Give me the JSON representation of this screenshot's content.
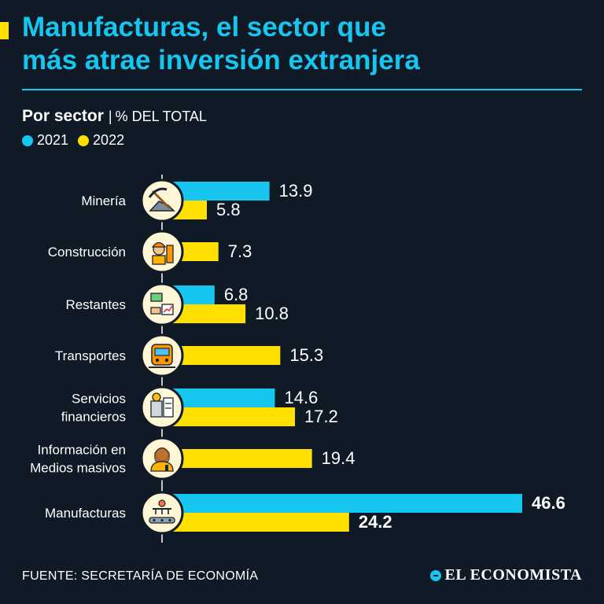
{
  "title": {
    "line1": "Manufacturas, el sector que",
    "line2": "más atrae inversión extranjera"
  },
  "subtitle": {
    "main": "Por sector",
    "separator": "|",
    "unit": "% DEL TOTAL"
  },
  "colors": {
    "accent": "#16c6ef",
    "series_2021": "#16c6ef",
    "series_2022": "#ffe000",
    "background": "#0f1a26"
  },
  "chart_data": {
    "type": "bar",
    "orientation": "horizontal",
    "title": "Manufacturas, el sector que más atrae inversión extranjera",
    "subtitle": "Por sector | % DEL TOTAL",
    "xlim": [
      0,
      50
    ],
    "legend": "top-left",
    "grid": false,
    "categories": [
      {
        "lines": [
          "Minería"
        ],
        "icon": "mining-icon"
      },
      {
        "lines": [
          "Construcción"
        ],
        "icon": "construction-worker-icon"
      },
      {
        "lines": [
          "Restantes"
        ],
        "icon": "money-growth-icon"
      },
      {
        "lines": [
          "Transportes"
        ],
        "icon": "train-icon"
      },
      {
        "lines": [
          "Servicios",
          "financieros"
        ],
        "icon": "finance-calculator-icon"
      },
      {
        "lines": [
          "Información en",
          "Medios masivos"
        ],
        "icon": "news-anchor-icon"
      },
      {
        "lines": [
          "Manufacturas"
        ],
        "icon": "factory-robot-icon"
      }
    ],
    "series": [
      {
        "name": "2021",
        "color": "#16c6ef",
        "values": [
          13.9,
          null,
          6.8,
          null,
          14.6,
          null,
          46.6
        ],
        "labels": [
          "13.9",
          "",
          "6.8",
          "",
          "14.6",
          "",
          "46.6"
        ]
      },
      {
        "name": "2022",
        "color": "#ffe000",
        "values": [
          5.8,
          7.3,
          10.8,
          15.3,
          17.2,
          19.4,
          24.2
        ],
        "labels": [
          "5.8",
          "7.3",
          "10.8",
          "15.3",
          "17.2",
          "19.4",
          "24.2"
        ]
      }
    ],
    "highlight_category": "Manufacturas"
  },
  "footer": {
    "source": "FUENTE: SECRETARÍA DE ECONOMÍA",
    "logo": "EL ECONOMISTA"
  }
}
